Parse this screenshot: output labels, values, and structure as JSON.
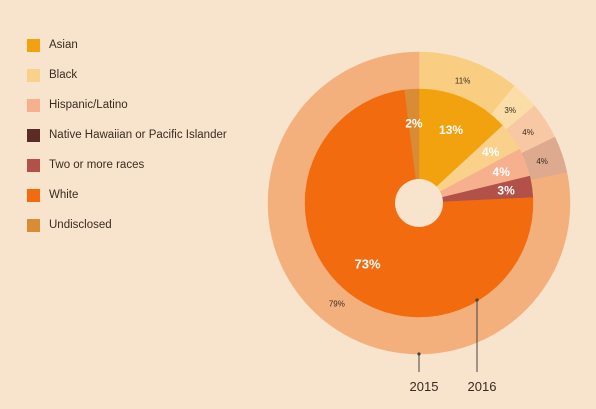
{
  "chart_data": {
    "type": "pie",
    "legend_position": "left",
    "categories": [
      "Asian",
      "Black",
      "Hispanic/Latino",
      "Native Hawaiian or Pacific Islander",
      "Two or more races",
      "White",
      "Undisclosed"
    ],
    "colors": [
      "#f3a20f",
      "#f9d18b",
      "#f6b08e",
      "#5c2b25",
      "#b1514a",
      "#f26b0f",
      "#d98b35"
    ],
    "series": [
      {
        "name": "2015",
        "ring": "outer",
        "values": [
          11,
          3,
          4,
          0,
          4,
          79,
          0
        ],
        "labels": [
          "11%",
          "3%",
          "4%",
          "",
          "4%",
          "79%",
          ""
        ],
        "colors": [
          "#f9ce82",
          "#fbdda7",
          "#f8c7a3",
          "#5c2b25",
          "#ddaa90",
          "#f4b07c",
          "#d98b35"
        ]
      },
      {
        "name": "2016",
        "ring": "inner",
        "values": [
          13,
          4,
          4,
          0,
          3,
          73,
          2
        ],
        "labels": [
          "13%",
          "4%",
          "4%",
          "",
          "3%",
          "73%",
          "2%"
        ],
        "colors": [
          "#f3a20f",
          "#f9d18b",
          "#f6b08e",
          "#5c2b25",
          "#b1514a",
          "#f26b0f",
          "#d98b35"
        ]
      }
    ]
  }
}
